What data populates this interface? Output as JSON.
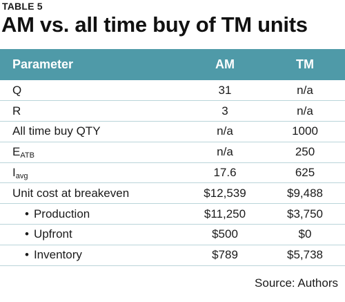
{
  "header": {
    "table_label": "TABLE 5",
    "title": "AM vs. all time buy of TM units"
  },
  "table": {
    "columns": [
      "Parameter",
      "AM",
      "TM"
    ],
    "rows": [
      {
        "param": "Q",
        "param_sub": "",
        "am": "31",
        "tm": "n/a",
        "indent": false
      },
      {
        "param": "R",
        "param_sub": "",
        "am": "3",
        "tm": "n/a",
        "indent": false
      },
      {
        "param": "All time buy QTY",
        "param_sub": "",
        "am": "n/a",
        "tm": "1000",
        "indent": false
      },
      {
        "param": "E",
        "param_sub": "ATB",
        "am": "n/a",
        "tm": "250",
        "indent": false
      },
      {
        "param": "I",
        "param_sub": "avg",
        "am": "17.6",
        "tm": "625",
        "indent": false
      },
      {
        "param": "Unit cost at breakeven",
        "param_sub": "",
        "am": "$12,539",
        "tm": "$9,488",
        "indent": false
      },
      {
        "param": "Production",
        "param_sub": "",
        "am": "$11,250",
        "tm": "$3,750",
        "indent": true
      },
      {
        "param": "Upfront",
        "param_sub": "",
        "am": "$500",
        "tm": "$0",
        "indent": true
      },
      {
        "param": "Inventory",
        "param_sub": "",
        "am": "$789",
        "tm": "$5,738",
        "indent": true
      }
    ],
    "bullet": "•"
  },
  "footer": {
    "source": "Source: Authors"
  },
  "colors": {
    "header_bg": "#4f9aa8",
    "row_divider": "#b9d4d9"
  }
}
